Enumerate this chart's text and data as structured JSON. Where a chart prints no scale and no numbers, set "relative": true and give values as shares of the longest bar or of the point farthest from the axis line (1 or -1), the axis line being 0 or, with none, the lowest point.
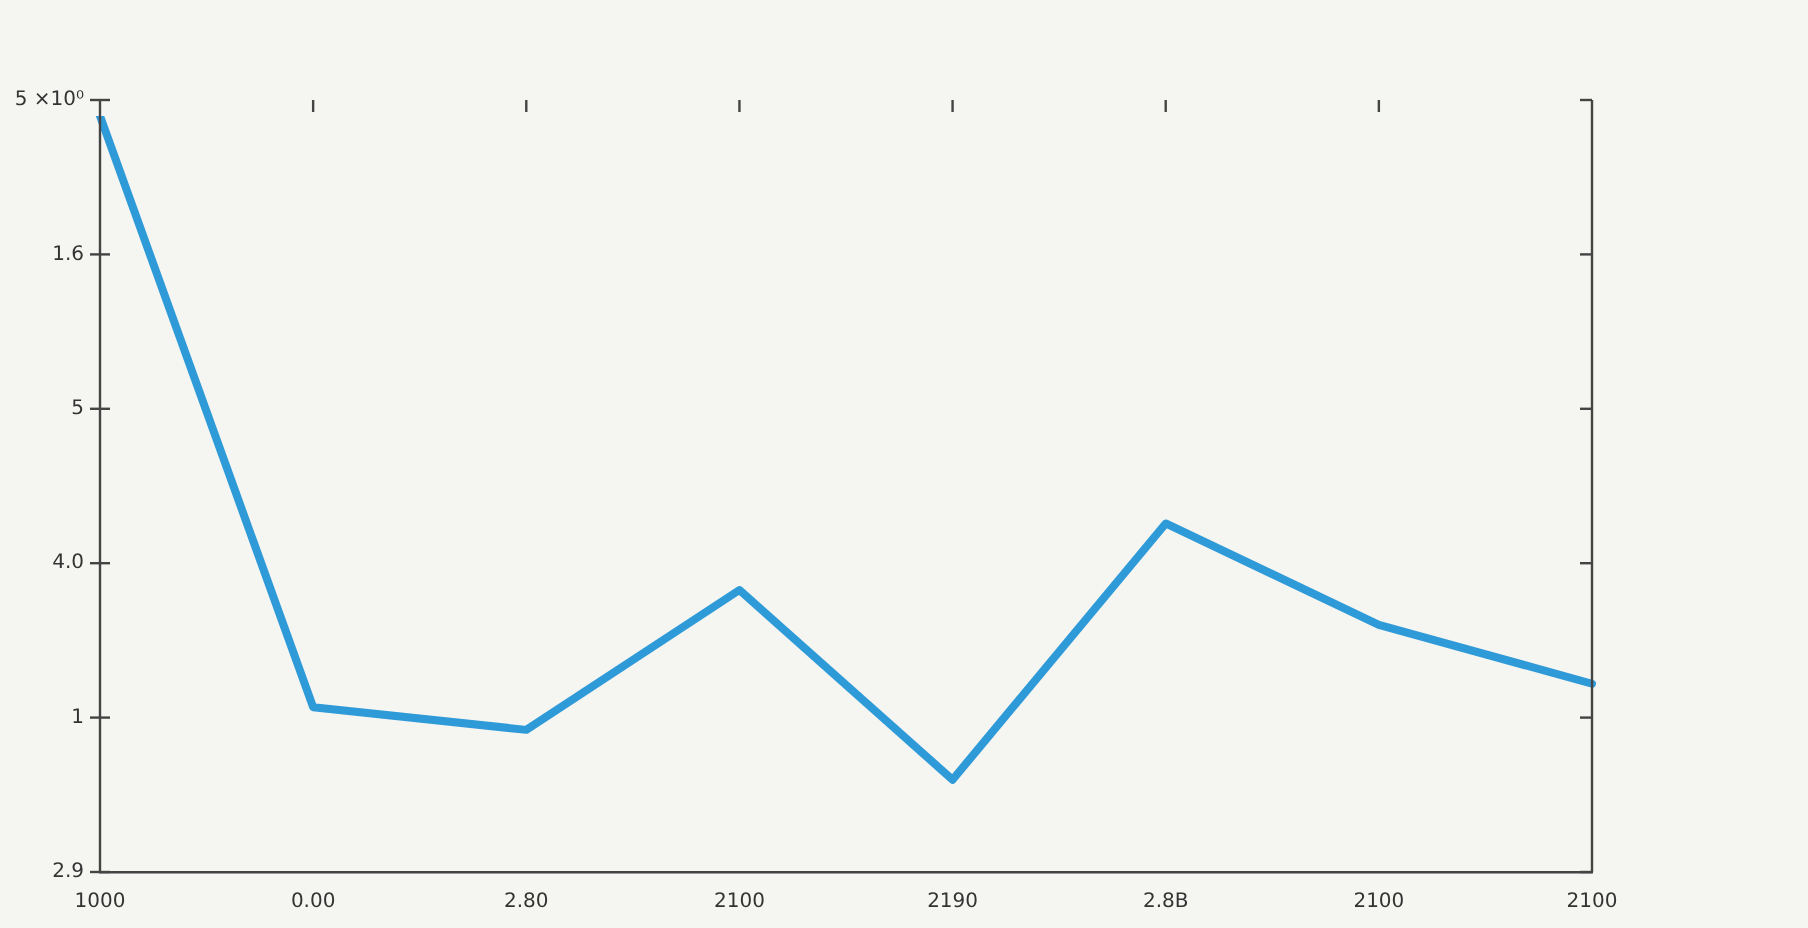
{
  "chart_data": {
    "type": "line",
    "relative": true,
    "categories": [
      "1000",
      "0.00",
      "2.80",
      "2100",
      "2190",
      "2.8B",
      "2100",
      "2100"
    ],
    "series": [
      {
        "color": "#2e9ad8",
        "values": [
          1,
          0.218,
          0.188,
          0.373,
          0.122,
          0.461,
          0.327,
          0.249
        ]
      }
    ],
    "annotations": [
      "5 ×10⁰",
      "1.6",
      "5",
      "4.0",
      "1",
      "2.9"
    ],
    "grid": false,
    "legend": false,
    "marker": "none",
    "line_style": "solid"
  }
}
